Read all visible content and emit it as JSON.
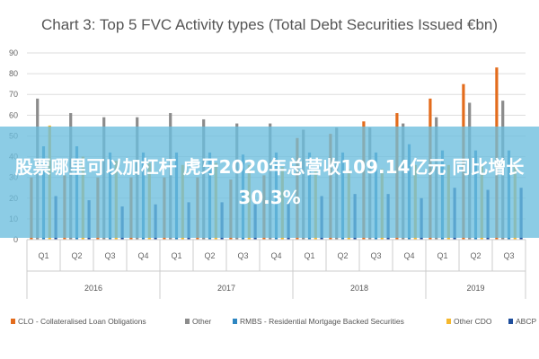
{
  "colors": {
    "CLO": "#E36C1D",
    "Other": "#8C8C8C",
    "RMBS": "#2E86C1",
    "OtherCDO": "#F5B82E",
    "ABCP": "#1F4E9C",
    "banner": "#6CBEDE"
  },
  "chart_data": {
    "type": "bar",
    "title": "Chart 3: Top 5 FVC Activity types (Total Debt Securities Issued €bn)",
    "xlabel": "",
    "ylabel": "",
    "ylim": [
      0,
      90
    ],
    "yticks": [
      "0",
      "10",
      "20",
      "30",
      "40",
      "50",
      "60",
      "70",
      "80",
      "90"
    ],
    "grid": true,
    "legend_position": "bottom",
    "categories": [
      "Q1",
      "Q2",
      "Q3",
      "Q4",
      "Q1",
      "Q2",
      "Q3",
      "Q4",
      "Q1",
      "Q2",
      "Q3",
      "Q4",
      "Q1",
      "Q2",
      "Q3"
    ],
    "year_groups": [
      {
        "label": "2016",
        "count": 4
      },
      {
        "label": "2017",
        "count": 4
      },
      {
        "label": "2018",
        "count": 4
      },
      {
        "label": "2019",
        "count": 3
      }
    ],
    "series": [
      {
        "name": "CLO - Collateralised Loan Obligations",
        "color_key": "CLO",
        "values": [
          30,
          31,
          30,
          30,
          30,
          30,
          29,
          31,
          49,
          51,
          57,
          61,
          68,
          75,
          83
        ]
      },
      {
        "name": "Other",
        "color_key": "Other",
        "values": [
          68,
          61,
          59,
          59,
          61,
          58,
          56,
          56,
          53,
          54,
          54,
          56,
          59,
          66,
          67
        ]
      },
      {
        "name": "RMBS - Residential Mortgage Backed Securities",
        "color_key": "RMBS",
        "values": [
          45,
          45,
          42,
          42,
          42,
          42,
          41,
          42,
          42,
          42,
          42,
          46,
          43,
          43,
          43
        ]
      },
      {
        "name": "Other CDO",
        "color_key": "OtherCDO",
        "values": [
          55,
          40,
          38,
          37,
          36,
          37,
          36,
          35,
          33,
          34,
          34,
          36,
          36,
          36,
          36
        ]
      },
      {
        "name": "ABCP",
        "color_key": "ABCP",
        "values": [
          21,
          19,
          16,
          17,
          18,
          18,
          17,
          18,
          21,
          22,
          22,
          20,
          25,
          24,
          25
        ]
      }
    ]
  },
  "overlay": {
    "text": "股票哪里可以加杠杆 虎牙2020年总营收109.14亿元 同比增长30.3%"
  }
}
